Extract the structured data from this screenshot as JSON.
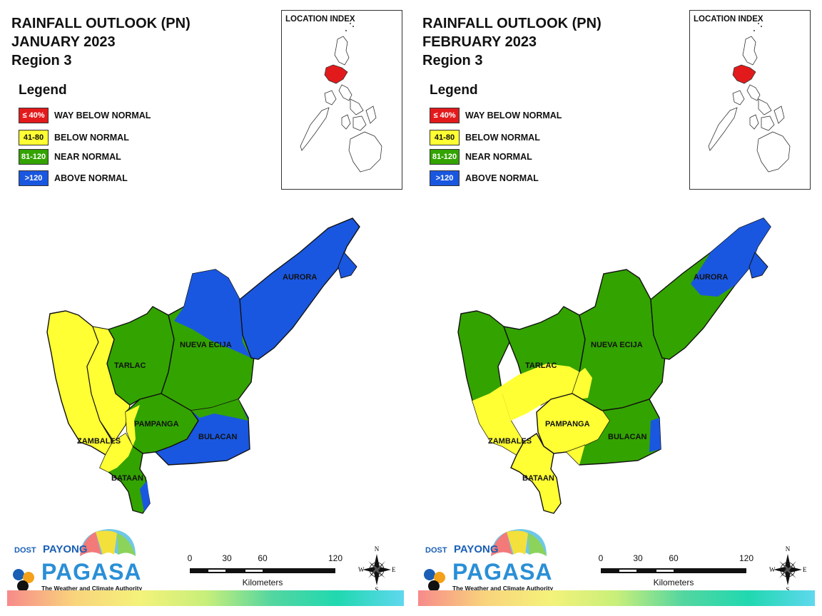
{
  "colors": {
    "way_below": "#e31a1c",
    "below": "#ffff33",
    "near": "#33a300",
    "above": "#1a57e0",
    "index_highlight": "#e31a1c"
  },
  "panels": [
    {
      "title_line1": "RAINFALL OUTLOOK (PN)",
      "title_line2": "JANUARY 2023",
      "title_line3": "Region 3",
      "legend_title": "Legend",
      "legend": [
        {
          "code": "≤ 40%",
          "label": "WAY BELOW NORMAL",
          "color": "#e31a1c",
          "text_color": "#ffffff"
        },
        {
          "code": "41-80",
          "label": "BELOW NORMAL",
          "color": "#ffff33",
          "text_color": "#111111"
        },
        {
          "code": "81-120",
          "label": "NEAR NORMAL",
          "color": "#33a300",
          "text_color": "#ffffff"
        },
        {
          "code": ">120",
          "label": "ABOVE NORMAL",
          "color": "#1a57e0",
          "text_color": "#ffffff"
        }
      ],
      "location_index_title": "LOCATION INDEX",
      "provinces": {
        "aurora": {
          "name": "AURORA",
          "category": "ABOVE NORMAL"
        },
        "nueva_ecija": {
          "name": "NUEVA ECIJA",
          "category": "NEAR NORMAL / ABOVE NORMAL"
        },
        "tarlac": {
          "name": "TARLAC",
          "category": "NEAR NORMAL"
        },
        "pampanga": {
          "name": "PAMPANGA",
          "category": "NEAR NORMAL"
        },
        "bulacan": {
          "name": "BULACAN",
          "category": "ABOVE NORMAL"
        },
        "zambales": {
          "name": "ZAMBALES",
          "category": "BELOW NORMAL"
        },
        "bataan": {
          "name": "BATAAN",
          "category": "NEAR NORMAL"
        }
      },
      "logo": {
        "dost": "DOST",
        "payong": "PAYONG",
        "pagasa": "PAGASA",
        "tagline": "The Weather and Climate Authority"
      },
      "scale": {
        "ticks": [
          "0",
          "30",
          "60",
          "120"
        ],
        "unit": "Kilometers"
      },
      "compass": {
        "n": "N",
        "s": "S",
        "e": "E",
        "w": "W"
      }
    },
    {
      "title_line1": "RAINFALL OUTLOOK (PN)",
      "title_line2": "FEBRUARY 2023",
      "title_line3": "Region 3",
      "legend_title": "Legend",
      "legend": [
        {
          "code": "≤ 40%",
          "label": "WAY BELOW NORMAL",
          "color": "#e31a1c",
          "text_color": "#ffffff"
        },
        {
          "code": "41-80",
          "label": "BELOW NORMAL",
          "color": "#ffff33",
          "text_color": "#111111"
        },
        {
          "code": "81-120",
          "label": "NEAR NORMAL",
          "color": "#33a300",
          "text_color": "#ffffff"
        },
        {
          "code": ">120",
          "label": "ABOVE NORMAL",
          "color": "#1a57e0",
          "text_color": "#ffffff"
        }
      ],
      "location_index_title": "LOCATION INDEX",
      "provinces": {
        "aurora": {
          "name": "AURORA",
          "category": "NEAR NORMAL"
        },
        "nueva_ecija": {
          "name": "NUEVA ECIJA",
          "category": "NEAR NORMAL"
        },
        "tarlac": {
          "name": "TARLAC",
          "category": "NEAR NORMAL / BELOW NORMAL"
        },
        "pampanga": {
          "name": "PAMPANGA",
          "category": "BELOW NORMAL"
        },
        "bulacan": {
          "name": "BULACAN",
          "category": "NEAR NORMAL"
        },
        "zambales": {
          "name": "ZAMBALES",
          "category": "BELOW NORMAL"
        },
        "bataan": {
          "name": "BATAAN",
          "category": "BELOW NORMAL"
        }
      },
      "logo": {
        "dost": "DOST",
        "payong": "PAYONG",
        "pagasa": "PAGASA",
        "tagline": "The Weather and Climate Authority"
      },
      "scale": {
        "ticks": [
          "0",
          "30",
          "60",
          "120"
        ],
        "unit": "Kilometers"
      },
      "compass": {
        "n": "N",
        "s": "S",
        "e": "E",
        "w": "W"
      }
    }
  ]
}
